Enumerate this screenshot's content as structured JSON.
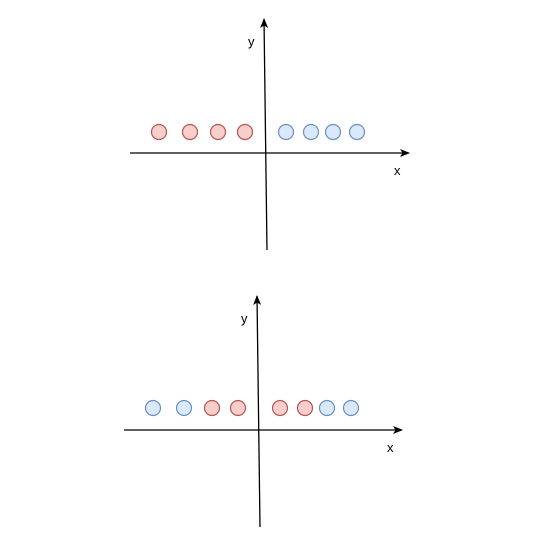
{
  "colors": {
    "red_fill": "#f8cecc",
    "red_stroke": "#b85450",
    "blue_fill": "#dae8fc",
    "blue_stroke": "#6c8ebf",
    "axis": "#000000"
  },
  "diagrams": [
    {
      "x_label": "x",
      "y_label": "y",
      "points": [
        "red",
        "red",
        "red",
        "red",
        "blue",
        "blue",
        "blue",
        "blue"
      ]
    },
    {
      "x_label": "x",
      "y_label": "y",
      "points": [
        "blue",
        "blue",
        "red",
        "red",
        "red",
        "red",
        "blue",
        "blue"
      ]
    }
  ]
}
